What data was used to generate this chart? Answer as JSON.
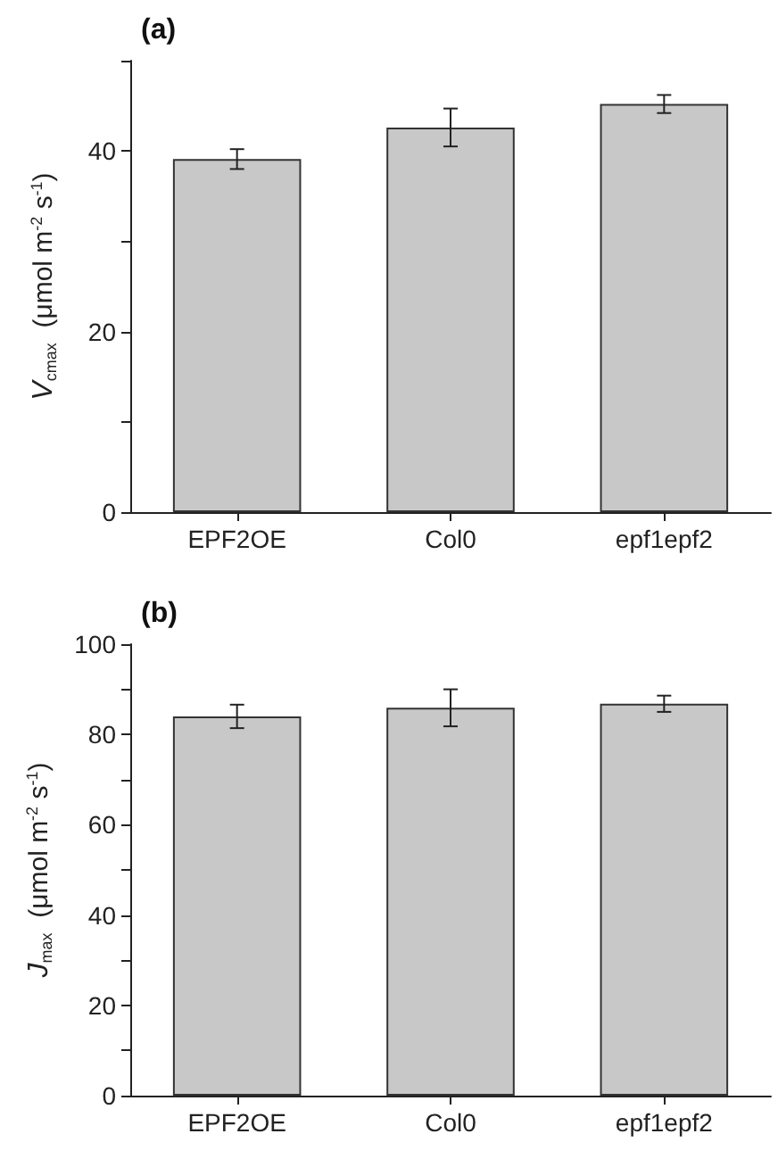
{
  "chart_data": [
    {
      "type": "bar",
      "title": "(a)",
      "ylabel": "V$_{cmax}$  (μmol m$^{-2}$ s$^{-1}$)",
      "categories": [
        "EPF2OE",
        "Col0",
        "epf1epf2"
      ],
      "values": [
        39.1,
        42.6,
        45.2
      ],
      "errors": [
        1.1,
        2.1,
        1.0
      ],
      "color": "#c8c8c8",
      "ylim": [
        0,
        50
      ],
      "yticks": [
        0,
        {
          "value": 10,
          "label": null
        },
        20,
        {
          "value": 30,
          "label": null
        },
        40,
        {
          "value": 50,
          "label": null
        }
      ],
      "grid": false
    },
    {
      "type": "bar",
      "title": "(b)",
      "ylabel": "J$_{max}$  (μmol m$^{-2}$ s$^{-1}$)",
      "categories": [
        "EPF2OE",
        "Col0",
        "epf1epf2"
      ],
      "values": [
        84.0,
        85.9,
        86.8
      ],
      "errors": [
        2.6,
        4.1,
        1.8
      ],
      "color": "#c8c8c8",
      "ylim": [
        0,
        100
      ],
      "yticks": [
        0,
        {
          "value": 10,
          "label": null
        },
        20,
        {
          "value": 30,
          "label": null
        },
        40,
        {
          "value": 50,
          "label": null
        },
        60,
        {
          "value": 70,
          "label": null
        },
        80,
        {
          "value": 90,
          "label": null
        },
        100
      ],
      "grid": false
    }
  ]
}
